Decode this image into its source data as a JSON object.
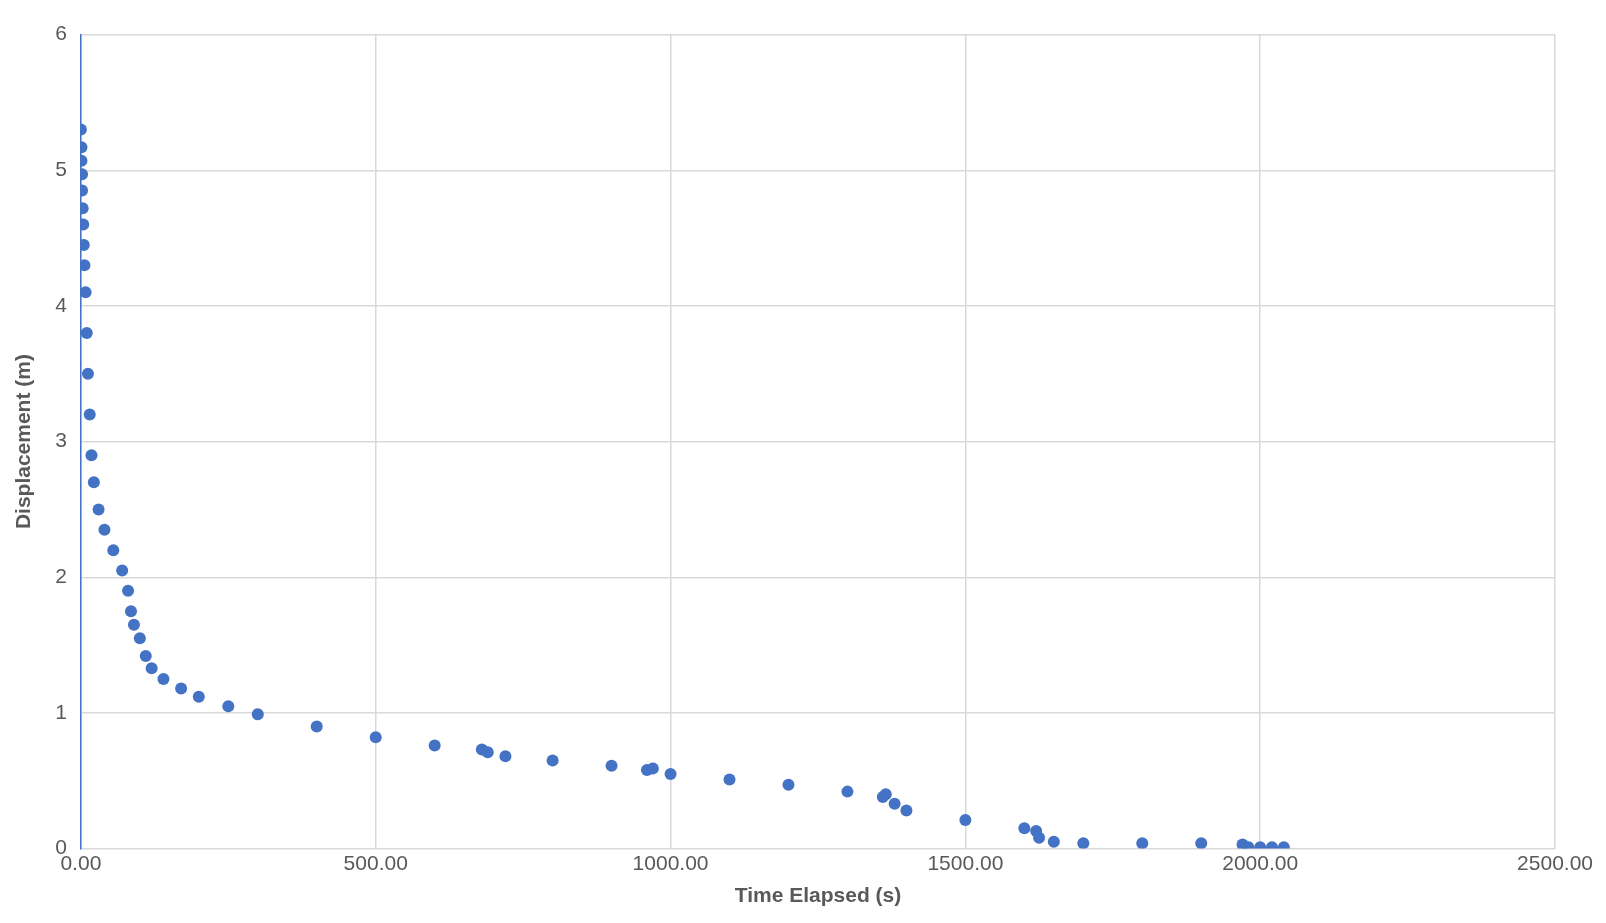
{
  "chart_data": {
    "type": "scatter",
    "xlabel": "Time Elapsed (s)",
    "ylabel": "Displacement (m)",
    "xlim": [
      0,
      2500
    ],
    "xticks": [
      {
        "value": 0,
        "label": "0.00"
      },
      {
        "value": 500,
        "label": "500.00"
      },
      {
        "value": 1000,
        "label": "1000.00"
      },
      {
        "value": 1500,
        "label": "1500.00"
      },
      {
        "value": 2000,
        "label": "2000.00"
      },
      {
        "value": 2500,
        "label": "2500.00"
      }
    ],
    "ylim": [
      0,
      6
    ],
    "yticks": [
      0,
      1,
      2,
      3,
      4,
      5,
      6
    ],
    "grid": true,
    "marker": "circle",
    "series": [
      {
        "color": "#4472c4",
        "x": [
          0,
          1,
          1,
          2,
          2,
          3,
          4,
          5,
          6,
          8,
          10,
          12,
          15,
          18,
          22,
          30,
          40,
          55,
          70,
          80,
          85,
          90,
          100,
          110,
          120,
          140,
          170,
          200,
          250,
          300,
          400,
          500,
          600,
          680,
          690,
          720,
          800,
          900,
          960,
          970,
          1000,
          1100,
          1200,
          1300,
          1360,
          1365,
          1380,
          1400,
          1500,
          1600,
          1620,
          1625,
          1650,
          1700,
          1800,
          1900,
          1970,
          1980,
          2000,
          2020,
          2040
        ],
        "values": [
          5.3,
          5.17,
          5.07,
          4.97,
          4.85,
          4.72,
          4.6,
          4.45,
          4.3,
          4.1,
          3.8,
          3.5,
          3.2,
          2.9,
          2.7,
          2.5,
          2.35,
          2.2,
          2.05,
          1.9,
          1.75,
          1.65,
          1.55,
          1.42,
          1.33,
          1.25,
          1.18,
          1.12,
          1.05,
          0.99,
          0.9,
          0.82,
          0.76,
          0.73,
          0.71,
          0.68,
          0.65,
          0.61,
          0.58,
          0.59,
          0.55,
          0.51,
          0.47,
          0.42,
          0.38,
          0.4,
          0.33,
          0.28,
          0.21,
          0.15,
          0.13,
          0.08,
          0.05,
          0.04,
          0.04,
          0.04,
          0.03,
          0.01,
          0.01,
          0.01,
          0.01
        ]
      }
    ]
  }
}
